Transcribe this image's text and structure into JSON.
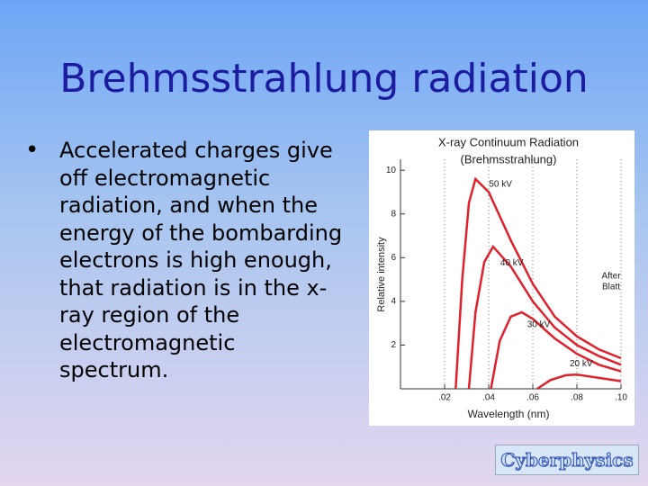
{
  "slide_title": "Brehmsstrahlung radiation",
  "bullet": "Accelerated charges give off electromagnetic radiation, and when the energy of the bombarding electrons is high enough, that radiation is in the x-ray region of the electromagnetic spectrum.",
  "logo": "Cyberphysics",
  "chart_data": {
    "type": "line",
    "title": "X-ray Continuum Radiation",
    "subtitle": "(Brehmsstrahlung)",
    "x_label": "Wavelength (nm)",
    "y_label": "Relative intensity",
    "annotation": [
      "After",
      "Blatt"
    ],
    "xlim": [
      0,
      0.1
    ],
    "ylim": [
      0,
      10.5
    ],
    "xticks": [
      {
        "value": 0.02,
        "label": ".02"
      },
      {
        "value": 0.04,
        "label": ".04"
      },
      {
        "value": 0.06,
        "label": ".06"
      },
      {
        "value": 0.08,
        "label": ".08"
      },
      {
        "value": 0.1,
        "label": ".10"
      }
    ],
    "yticks": [
      2,
      4,
      6,
      8,
      10
    ],
    "grid": "x",
    "series": [
      {
        "name": "50 kV",
        "color": "#e0202a",
        "x": [
          0.025,
          0.028,
          0.031,
          0.034,
          0.04,
          0.05,
          0.06,
          0.07,
          0.08,
          0.09,
          0.1
        ],
        "values": [
          0,
          5,
          8.5,
          9.6,
          9.0,
          6.8,
          4.8,
          3.3,
          2.4,
          1.8,
          1.4
        ]
      },
      {
        "name": "40 kV",
        "color": "#e0202a",
        "x": [
          0.031,
          0.034,
          0.038,
          0.042,
          0.05,
          0.06,
          0.07,
          0.08,
          0.09,
          0.1
        ],
        "values": [
          0,
          3.5,
          5.8,
          6.5,
          5.6,
          4.0,
          2.8,
          2.0,
          1.5,
          1.1
        ]
      },
      {
        "name": "30 kV",
        "color": "#e0202a",
        "x": [
          0.041,
          0.045,
          0.05,
          0.055,
          0.06,
          0.07,
          0.08,
          0.09,
          0.1
        ],
        "values": [
          0,
          2.2,
          3.3,
          3.5,
          3.2,
          2.3,
          1.6,
          1.1,
          0.8
        ]
      },
      {
        "name": "20 kV",
        "color": "#e0202a",
        "x": [
          0.062,
          0.068,
          0.075,
          0.08,
          0.09,
          0.1
        ],
        "values": [
          0,
          0.4,
          0.62,
          0.65,
          0.5,
          0.35
        ]
      }
    ]
  }
}
